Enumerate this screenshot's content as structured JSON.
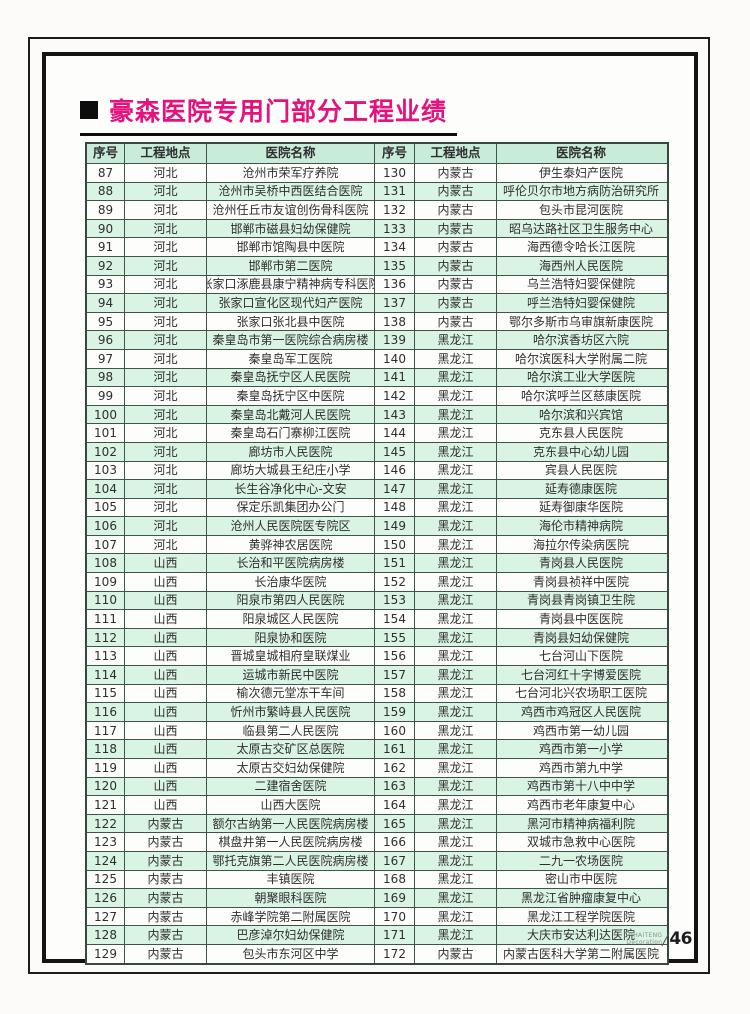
{
  "page": {
    "title": "豪森医院专用门部分工程业绩",
    "footer": {
      "brand_line1": "HAITENG",
      "brand_line2": "Decoration",
      "page_number": "46"
    }
  },
  "colors": {
    "accent_magenta": "#e5127d",
    "header_row_green": "#c8ecd8",
    "stripe_row_green": "#d9f4e3",
    "table_border": "#41544a"
  },
  "table": {
    "headers": [
      "序号",
      "工程地点",
      "医院名称",
      "序号",
      "工程地点",
      "医院名称"
    ],
    "left_rows": [
      [
        "87",
        "河北",
        "沧州市荣军疗养院"
      ],
      [
        "88",
        "河北",
        "沧州市吴桥中西医结合医院"
      ],
      [
        "89",
        "河北",
        "沧州任丘市友谊创伤骨科医院"
      ],
      [
        "90",
        "河北",
        "邯郸市磁县妇幼保健院"
      ],
      [
        "91",
        "河北",
        "邯郸市馆陶县中医院"
      ],
      [
        "92",
        "河北",
        "邯郸市第二医院"
      ],
      [
        "93",
        "河北",
        "张家口涿鹿县康宁精神病专科医院"
      ],
      [
        "94",
        "河北",
        "张家口宣化区现代妇产医院"
      ],
      [
        "95",
        "河北",
        "张家口张北县中医院"
      ],
      [
        "96",
        "河北",
        "秦皇岛市第一医院综合病房楼"
      ],
      [
        "97",
        "河北",
        "秦皇岛军工医院"
      ],
      [
        "98",
        "河北",
        "秦皇岛抚宁区人民医院"
      ],
      [
        "99",
        "河北",
        "秦皇岛抚宁区中医院"
      ],
      [
        "100",
        "河北",
        "秦皇岛北戴河人民医院"
      ],
      [
        "101",
        "河北",
        "秦皇岛石门寨柳江医院"
      ],
      [
        "102",
        "河北",
        "廊坊市人民医院"
      ],
      [
        "103",
        "河北",
        "廊坊大城县王纪庄小学"
      ],
      [
        "104",
        "河北",
        "长生谷净化中心-文安"
      ],
      [
        "105",
        "河北",
        "保定乐凯集团办公门"
      ],
      [
        "106",
        "河北",
        "沧州人民医院医专院区"
      ],
      [
        "107",
        "河北",
        "黄骅神农居医院"
      ],
      [
        "108",
        "山西",
        "长治和平医院病房楼"
      ],
      [
        "109",
        "山西",
        "长治康华医院"
      ],
      [
        "110",
        "山西",
        "阳泉市第四人民医院"
      ],
      [
        "111",
        "山西",
        "阳泉城区人民医院"
      ],
      [
        "112",
        "山西",
        "阳泉协和医院"
      ],
      [
        "113",
        "山西",
        "晋城皇城相府皇联煤业"
      ],
      [
        "114",
        "山西",
        "运城市新民中医院"
      ],
      [
        "115",
        "山西",
        "榆次德元堂冻干车间"
      ],
      [
        "116",
        "山西",
        "忻州市繁峙县人民医院"
      ],
      [
        "117",
        "山西",
        "临县第二人民医院"
      ],
      [
        "118",
        "山西",
        "太原古交矿区总医院"
      ],
      [
        "119",
        "山西",
        "太原古交妇幼保健院"
      ],
      [
        "120",
        "山西",
        "二建宿舍医院"
      ],
      [
        "121",
        "山西",
        "山西大医院"
      ],
      [
        "122",
        "内蒙古",
        "额尔古纳第一人民医院病房楼"
      ],
      [
        "123",
        "内蒙古",
        "棋盘井第一人民医院病房楼"
      ],
      [
        "124",
        "内蒙古",
        "鄂托克旗第二人民医院病房楼"
      ],
      [
        "125",
        "内蒙古",
        "丰镇医院"
      ],
      [
        "126",
        "内蒙古",
        "朝聚眼科医院"
      ],
      [
        "127",
        "内蒙古",
        "赤峰学院第二附属医院"
      ],
      [
        "128",
        "内蒙古",
        "巴彦淖尔妇幼保健院"
      ],
      [
        "129",
        "内蒙古",
        "包头市东河区中学"
      ]
    ],
    "right_rows": [
      [
        "130",
        "内蒙古",
        "伊生泰妇产医院"
      ],
      [
        "131",
        "内蒙古",
        "呼伦贝尔市地方病防治研究所"
      ],
      [
        "132",
        "内蒙古",
        "包头市昆河医院"
      ],
      [
        "133",
        "内蒙古",
        "昭乌达路社区卫生服务中心"
      ],
      [
        "134",
        "内蒙古",
        "海西德令哈长江医院"
      ],
      [
        "135",
        "内蒙古",
        "海西州人民医院"
      ],
      [
        "136",
        "内蒙古",
        "乌兰浩特妇婴保健院"
      ],
      [
        "137",
        "内蒙古",
        "呼兰浩特妇婴保健院"
      ],
      [
        "138",
        "内蒙古",
        "鄂尔多斯市乌审旗新康医院"
      ],
      [
        "139",
        "黑龙江",
        "哈尔滨香坊区六院"
      ],
      [
        "140",
        "黑龙江",
        "哈尔滨医科大学附属二院"
      ],
      [
        "141",
        "黑龙江",
        "哈尔滨工业大学医院"
      ],
      [
        "142",
        "黑龙江",
        "哈尔滨呼兰区慈康医院"
      ],
      [
        "143",
        "黑龙江",
        "哈尔滨和兴宾馆"
      ],
      [
        "144",
        "黑龙江",
        "克东县人民医院"
      ],
      [
        "145",
        "黑龙江",
        "克东县中心幼儿园"
      ],
      [
        "146",
        "黑龙江",
        "宾县人民医院"
      ],
      [
        "147",
        "黑龙江",
        "延寿德康医院"
      ],
      [
        "148",
        "黑龙江",
        "延寿御康华医院"
      ],
      [
        "149",
        "黑龙江",
        "海伦市精神病院"
      ],
      [
        "150",
        "黑龙江",
        "海拉尔传染病医院"
      ],
      [
        "151",
        "黑龙江",
        "青岗县人民医院"
      ],
      [
        "152",
        "黑龙江",
        "青岗县祯祥中医院"
      ],
      [
        "153",
        "黑龙江",
        "青岗县青岗镇卫生院"
      ],
      [
        "154",
        "黑龙江",
        "青岗县中医医院"
      ],
      [
        "155",
        "黑龙江",
        "青岗县妇幼保健院"
      ],
      [
        "156",
        "黑龙江",
        "七台河山下医院"
      ],
      [
        "157",
        "黑龙江",
        "七台河红十字博爱医院"
      ],
      [
        "158",
        "黑龙江",
        "七台河北兴农场职工医院"
      ],
      [
        "159",
        "黑龙江",
        "鸡西市鸡冠区人民医院"
      ],
      [
        "160",
        "黑龙江",
        "鸡西市第一幼儿园"
      ],
      [
        "161",
        "黑龙江",
        "鸡西市第一小学"
      ],
      [
        "162",
        "黑龙江",
        "鸡西市第九中学"
      ],
      [
        "163",
        "黑龙江",
        "鸡西市第十八中中学"
      ],
      [
        "164",
        "黑龙江",
        "鸡西市老年康复中心"
      ],
      [
        "165",
        "黑龙江",
        "黑河市精神病福利院"
      ],
      [
        "166",
        "黑龙江",
        "双城市急救中心医院"
      ],
      [
        "167",
        "黑龙江",
        "二九一农场医院"
      ],
      [
        "168",
        "黑龙江",
        "密山市中医院"
      ],
      [
        "169",
        "黑龙江",
        "黑龙江省肿瘤康复中心"
      ],
      [
        "170",
        "黑龙江",
        "黑龙江工程学院医院"
      ],
      [
        "171",
        "黑龙江",
        "大庆市安达利达医院"
      ],
      [
        "172",
        "内蒙古",
        "内蒙古医科大学第二附属医院"
      ]
    ]
  }
}
